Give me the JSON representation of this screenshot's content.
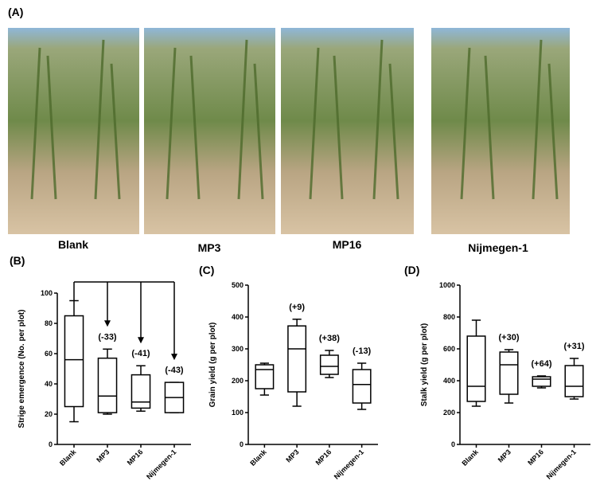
{
  "photos": {
    "label": "(A)",
    "captions": [
      "Blank",
      "MP3",
      "MP16",
      "Nijmegen-1"
    ]
  },
  "chart_data": [
    {
      "type": "box",
      "label": "(B)",
      "ylabel": "Strige emergence (No. per plot)",
      "categories": [
        "Blank",
        "MP3",
        "MP16",
        "Nijmegen-1"
      ],
      "min": [
        15,
        20,
        22,
        21
      ],
      "q1": [
        25,
        21,
        24,
        21
      ],
      "median": [
        56,
        32,
        28,
        31
      ],
      "q3": [
        85,
        57,
        46,
        41
      ],
      "max": [
        95,
        63,
        52,
        41
      ],
      "annotations": [
        null,
        "(-33)",
        "(-41)",
        "(-43)"
      ],
      "ylim": [
        0,
        100
      ],
      "yticks": [
        0,
        20,
        40,
        60,
        80,
        100
      ],
      "arrows": true
    },
    {
      "type": "box",
      "label": "(C)",
      "ylabel": "Grain yield (g per plot)",
      "categories": [
        "Blank",
        "MP3",
        "MP16",
        "Nijmegen-1"
      ],
      "min": [
        155,
        120,
        210,
        110
      ],
      "q1": [
        175,
        165,
        220,
        130
      ],
      "median": [
        235,
        300,
        245,
        188
      ],
      "q3": [
        250,
        372,
        280,
        235
      ],
      "max": [
        255,
        393,
        295,
        255
      ],
      "annotations": [
        null,
        "(+9)",
        "(+38)",
        "(-13)"
      ],
      "ylim": [
        0,
        500
      ],
      "yticks": [
        0,
        100,
        200,
        300,
        400,
        500
      ],
      "arrows": false
    },
    {
      "type": "box",
      "label": "(D)",
      "ylabel": "Stalk yield (g per plot)",
      "categories": [
        "Blank",
        "MP3",
        "MP16",
        "Nijmegen-1"
      ],
      "min": [
        240,
        260,
        355,
        285
      ],
      "q1": [
        270,
        315,
        365,
        300
      ],
      "median": [
        365,
        500,
        410,
        365
      ],
      "q3": [
        680,
        580,
        425,
        495
      ],
      "max": [
        780,
        595,
        430,
        540
      ],
      "annotations": [
        null,
        "(+30)",
        "(+64)",
        "(+31)"
      ],
      "ylim": [
        0,
        1000
      ],
      "yticks": [
        0,
        200,
        400,
        600,
        800,
        1000
      ],
      "arrows": false
    }
  ]
}
